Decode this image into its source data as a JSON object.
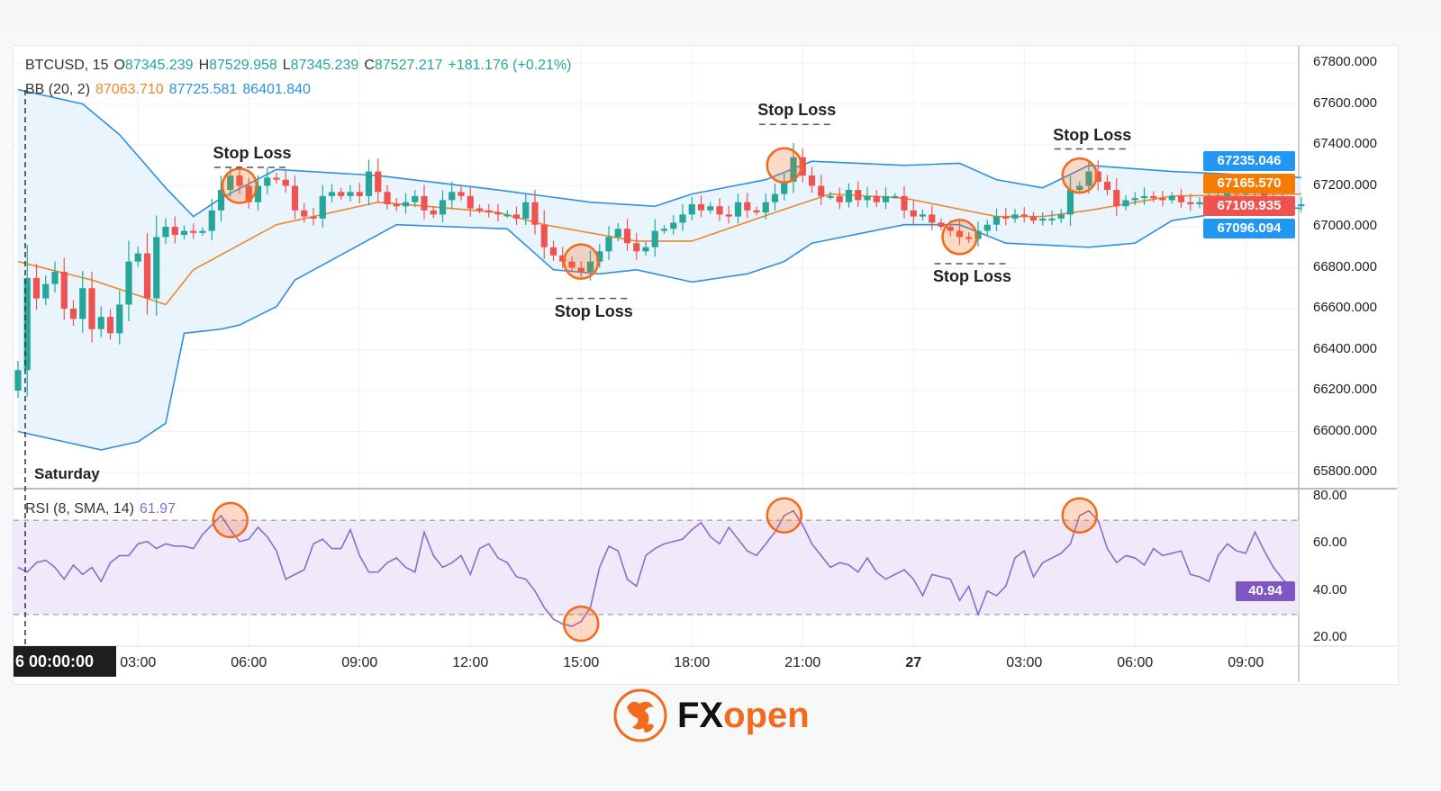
{
  "header": {
    "symbol": "BTCUSD, 15",
    "o_label": "O",
    "o": "87345.239",
    "h_label": "H",
    "h": "87529.958",
    "l_label": "L",
    "l": "87345.239",
    "c_label": "C",
    "c": "87527.217",
    "change": "+181.176 (+0.21%)",
    "bb_label": "BB (20, 2)",
    "bb_basis": "87063.710",
    "bb_upper": "87725.581",
    "bb_lower": "86401.840",
    "rsi_label": "RSI (8, SMA, 14)",
    "rsi_value": "61.97"
  },
  "colors": {
    "up": "#26a69a",
    "down": "#ef5350",
    "bb_band": "#2f8fe0",
    "bb_basis": "#f0862a",
    "band_fill": "#e3f1fc",
    "rsi": "#8e6cc9",
    "rsi_fill": "#efe9fa",
    "marker": "#f26a1b"
  },
  "crosshair": {
    "time": "6  00:00:00",
    "day_label": "Saturday"
  },
  "price_badges": [
    {
      "value": "67235.046",
      "color": "#2196f3"
    },
    {
      "value": "67165.570",
      "color": "#f57c00"
    },
    {
      "value": "67109.935",
      "color": "#ef5350"
    },
    {
      "value": "67096.094",
      "color": "#2196f3"
    }
  ],
  "rsi_badge": {
    "value": "40.94",
    "color": "#7e57c2"
  },
  "annotations": {
    "stop_loss_label": "Stop Loss",
    "items": [
      {
        "label": "Stop Loss",
        "candle": 24,
        "price": 67200,
        "stop": 67290,
        "side": "above"
      },
      {
        "label": "Stop Loss",
        "candle": 61,
        "price": 66830,
        "stop": 66650,
        "side": "below"
      },
      {
        "label": "Stop Loss",
        "candle": 83,
        "price": 67300,
        "stop": 67500,
        "side": "above"
      },
      {
        "label": "Stop Loss",
        "candle": 102,
        "price": 66950,
        "stop": 66820,
        "side": "below"
      },
      {
        "label": "Stop Loss",
        "candle": 115,
        "price": 67250,
        "stop": 67380,
        "side": "above"
      }
    ],
    "rsi_markers": [
      {
        "candle": 23,
        "rsi": 72
      },
      {
        "candle": 61,
        "rsi": 28
      },
      {
        "candle": 83,
        "rsi": 74
      },
      {
        "candle": 115,
        "rsi": 74
      }
    ]
  },
  "logo": {
    "text_fx": "FX",
    "text_open": "open"
  },
  "chart_data": [
    {
      "type": "candlestick",
      "title": "BTCUSD, 15",
      "timeframe_minutes": 15,
      "ylim": [
        65800,
        67800
      ],
      "y_ticks": [
        "67800.000",
        "67600.000",
        "67400.000",
        "67200.000",
        "67000.000",
        "66800.000",
        "66600.000",
        "66400.000",
        "66200.000",
        "66000.000",
        "65800.000"
      ],
      "x_ticks": [
        {
          "candle": 13,
          "label": "03:00"
        },
        {
          "candle": 25,
          "label": "06:00"
        },
        {
          "candle": 37,
          "label": "09:00"
        },
        {
          "candle": 49,
          "label": "12:00"
        },
        {
          "candle": 61,
          "label": "15:00"
        },
        {
          "candle": 73,
          "label": "18:00"
        },
        {
          "candle": 85,
          "label": "21:00"
        },
        {
          "candle": 97,
          "label": "27",
          "bold": true
        },
        {
          "candle": 109,
          "label": "03:00"
        },
        {
          "candle": 121,
          "label": "06:00"
        },
        {
          "candle": 133,
          "label": "09:00"
        }
      ],
      "first_open": 66200,
      "closes": [
        66300,
        66750,
        66650,
        66720,
        66780,
        66600,
        66550,
        66700,
        66500,
        66560,
        66480,
        66620,
        66830,
        66870,
        66650,
        66950,
        67000,
        66960,
        66980,
        66970,
        66980,
        67080,
        67180,
        67250,
        67200,
        67120,
        67200,
        67240,
        67230,
        67200,
        67080,
        67050,
        67040,
        67150,
        67170,
        67150,
        67170,
        67150,
        67270,
        67170,
        67110,
        67100,
        67120,
        67150,
        67080,
        67060,
        67130,
        67170,
        67150,
        67090,
        67080,
        67070,
        67060,
        67060,
        67040,
        67120,
        67010,
        66900,
        66860,
        66830,
        66800,
        66780,
        66830,
        66880,
        66950,
        66990,
        66920,
        66880,
        66900,
        66980,
        66990,
        67020,
        67060,
        67110,
        67080,
        67100,
        67060,
        67050,
        67120,
        67080,
        67070,
        67120,
        67160,
        67220,
        67340,
        67250,
        67200,
        67150,
        67150,
        67120,
        67180,
        67130,
        67150,
        67120,
        67150,
        67150,
        67080,
        67050,
        67060,
        67020,
        67000,
        66980,
        66950,
        66940,
        66980,
        67010,
        67050,
        67040,
        67060,
        67050,
        67030,
        67040,
        67040,
        67060,
        67180,
        67200,
        67270,
        67220,
        67180,
        67100,
        67130,
        67140,
        67150,
        67140,
        67130,
        67150,
        67120,
        67110,
        67120,
        67130,
        67150,
        67170,
        67160,
        67190,
        67170,
        67150,
        67120,
        67110,
        67100,
        67110
      ],
      "bollinger": {
        "upper": [
          [
            0,
            67670
          ],
          [
            7,
            67600
          ],
          [
            11,
            67450
          ],
          [
            16,
            67190
          ],
          [
            19,
            67050
          ],
          [
            22,
            67140
          ],
          [
            28,
            67280
          ],
          [
            39,
            67250
          ],
          [
            52,
            67180
          ],
          [
            62,
            67120
          ],
          [
            69,
            67100
          ],
          [
            73,
            67160
          ],
          [
            81,
            67230
          ],
          [
            86,
            67320
          ],
          [
            96,
            67300
          ],
          [
            102,
            67310
          ],
          [
            106,
            67230
          ],
          [
            111,
            67190
          ],
          [
            116,
            67300
          ],
          [
            125,
            67270
          ],
          [
            135,
            67250
          ],
          [
            139,
            67240
          ]
        ],
        "basis": [
          [
            0,
            66830
          ],
          [
            8,
            66740
          ],
          [
            16,
            66620
          ],
          [
            19,
            66790
          ],
          [
            28,
            67010
          ],
          [
            39,
            67120
          ],
          [
            52,
            67070
          ],
          [
            57,
            67010
          ],
          [
            67,
            66930
          ],
          [
            73,
            66930
          ],
          [
            82,
            67070
          ],
          [
            88,
            67160
          ],
          [
            96,
            67140
          ],
          [
            106,
            67050
          ],
          [
            111,
            67050
          ],
          [
            116,
            67080
          ],
          [
            125,
            67150
          ],
          [
            139,
            67160
          ]
        ],
        "lower": [
          [
            0,
            66000
          ],
          [
            9,
            65910
          ],
          [
            13,
            65950
          ],
          [
            16,
            66040
          ],
          [
            18,
            66480
          ],
          [
            22,
            66500
          ],
          [
            24,
            66520
          ],
          [
            28,
            66610
          ],
          [
            30,
            66740
          ],
          [
            41,
            67010
          ],
          [
            53,
            66990
          ],
          [
            58,
            66790
          ],
          [
            63,
            66770
          ],
          [
            67,
            66790
          ],
          [
            73,
            66730
          ],
          [
            79,
            66770
          ],
          [
            83,
            66830
          ],
          [
            86,
            66920
          ],
          [
            96,
            67010
          ],
          [
            102,
            67010
          ],
          [
            107,
            66920
          ],
          [
            116,
            66900
          ],
          [
            121,
            66920
          ],
          [
            125,
            67030
          ],
          [
            135,
            67100
          ],
          [
            139,
            67090
          ]
        ]
      }
    },
    {
      "type": "line",
      "title": "RSI (8, SMA, 14)",
      "ylim": [
        20,
        80
      ],
      "y_ticks": [
        "80.00",
        "60.00",
        "40.00",
        "20.00"
      ],
      "bands": [
        30,
        70
      ],
      "values": [
        50,
        48,
        52,
        53,
        50,
        45,
        51,
        47,
        50,
        44,
        52,
        55,
        55,
        60,
        61,
        58,
        60,
        59,
        59,
        58,
        64,
        68,
        72,
        66,
        61,
        62,
        67,
        63,
        57,
        45,
        47,
        49,
        60,
        62,
        58,
        58,
        66,
        55,
        48,
        48,
        52,
        54,
        50,
        48,
        65,
        55,
        50,
        52,
        55,
        47,
        58,
        60,
        54,
        52,
        46,
        45,
        40,
        33,
        28,
        26,
        25,
        27,
        33,
        50,
        59,
        57,
        45,
        42,
        55,
        58,
        60,
        61,
        62,
        66,
        69,
        63,
        60,
        67,
        62,
        57,
        55,
        60,
        65,
        72,
        74,
        68,
        60,
        55,
        50,
        52,
        51,
        48,
        54,
        48,
        45,
        47,
        49,
        45,
        38,
        47,
        46,
        45,
        36,
        42,
        30,
        40,
        38,
        42,
        54,
        57,
        46,
        52,
        54,
        56,
        60,
        72,
        74,
        70,
        58,
        52,
        55,
        54,
        51,
        58,
        55,
        56,
        57,
        47,
        46,
        44,
        55,
        60,
        57,
        56,
        65,
        57,
        50,
        45,
        41
      ]
    }
  ]
}
